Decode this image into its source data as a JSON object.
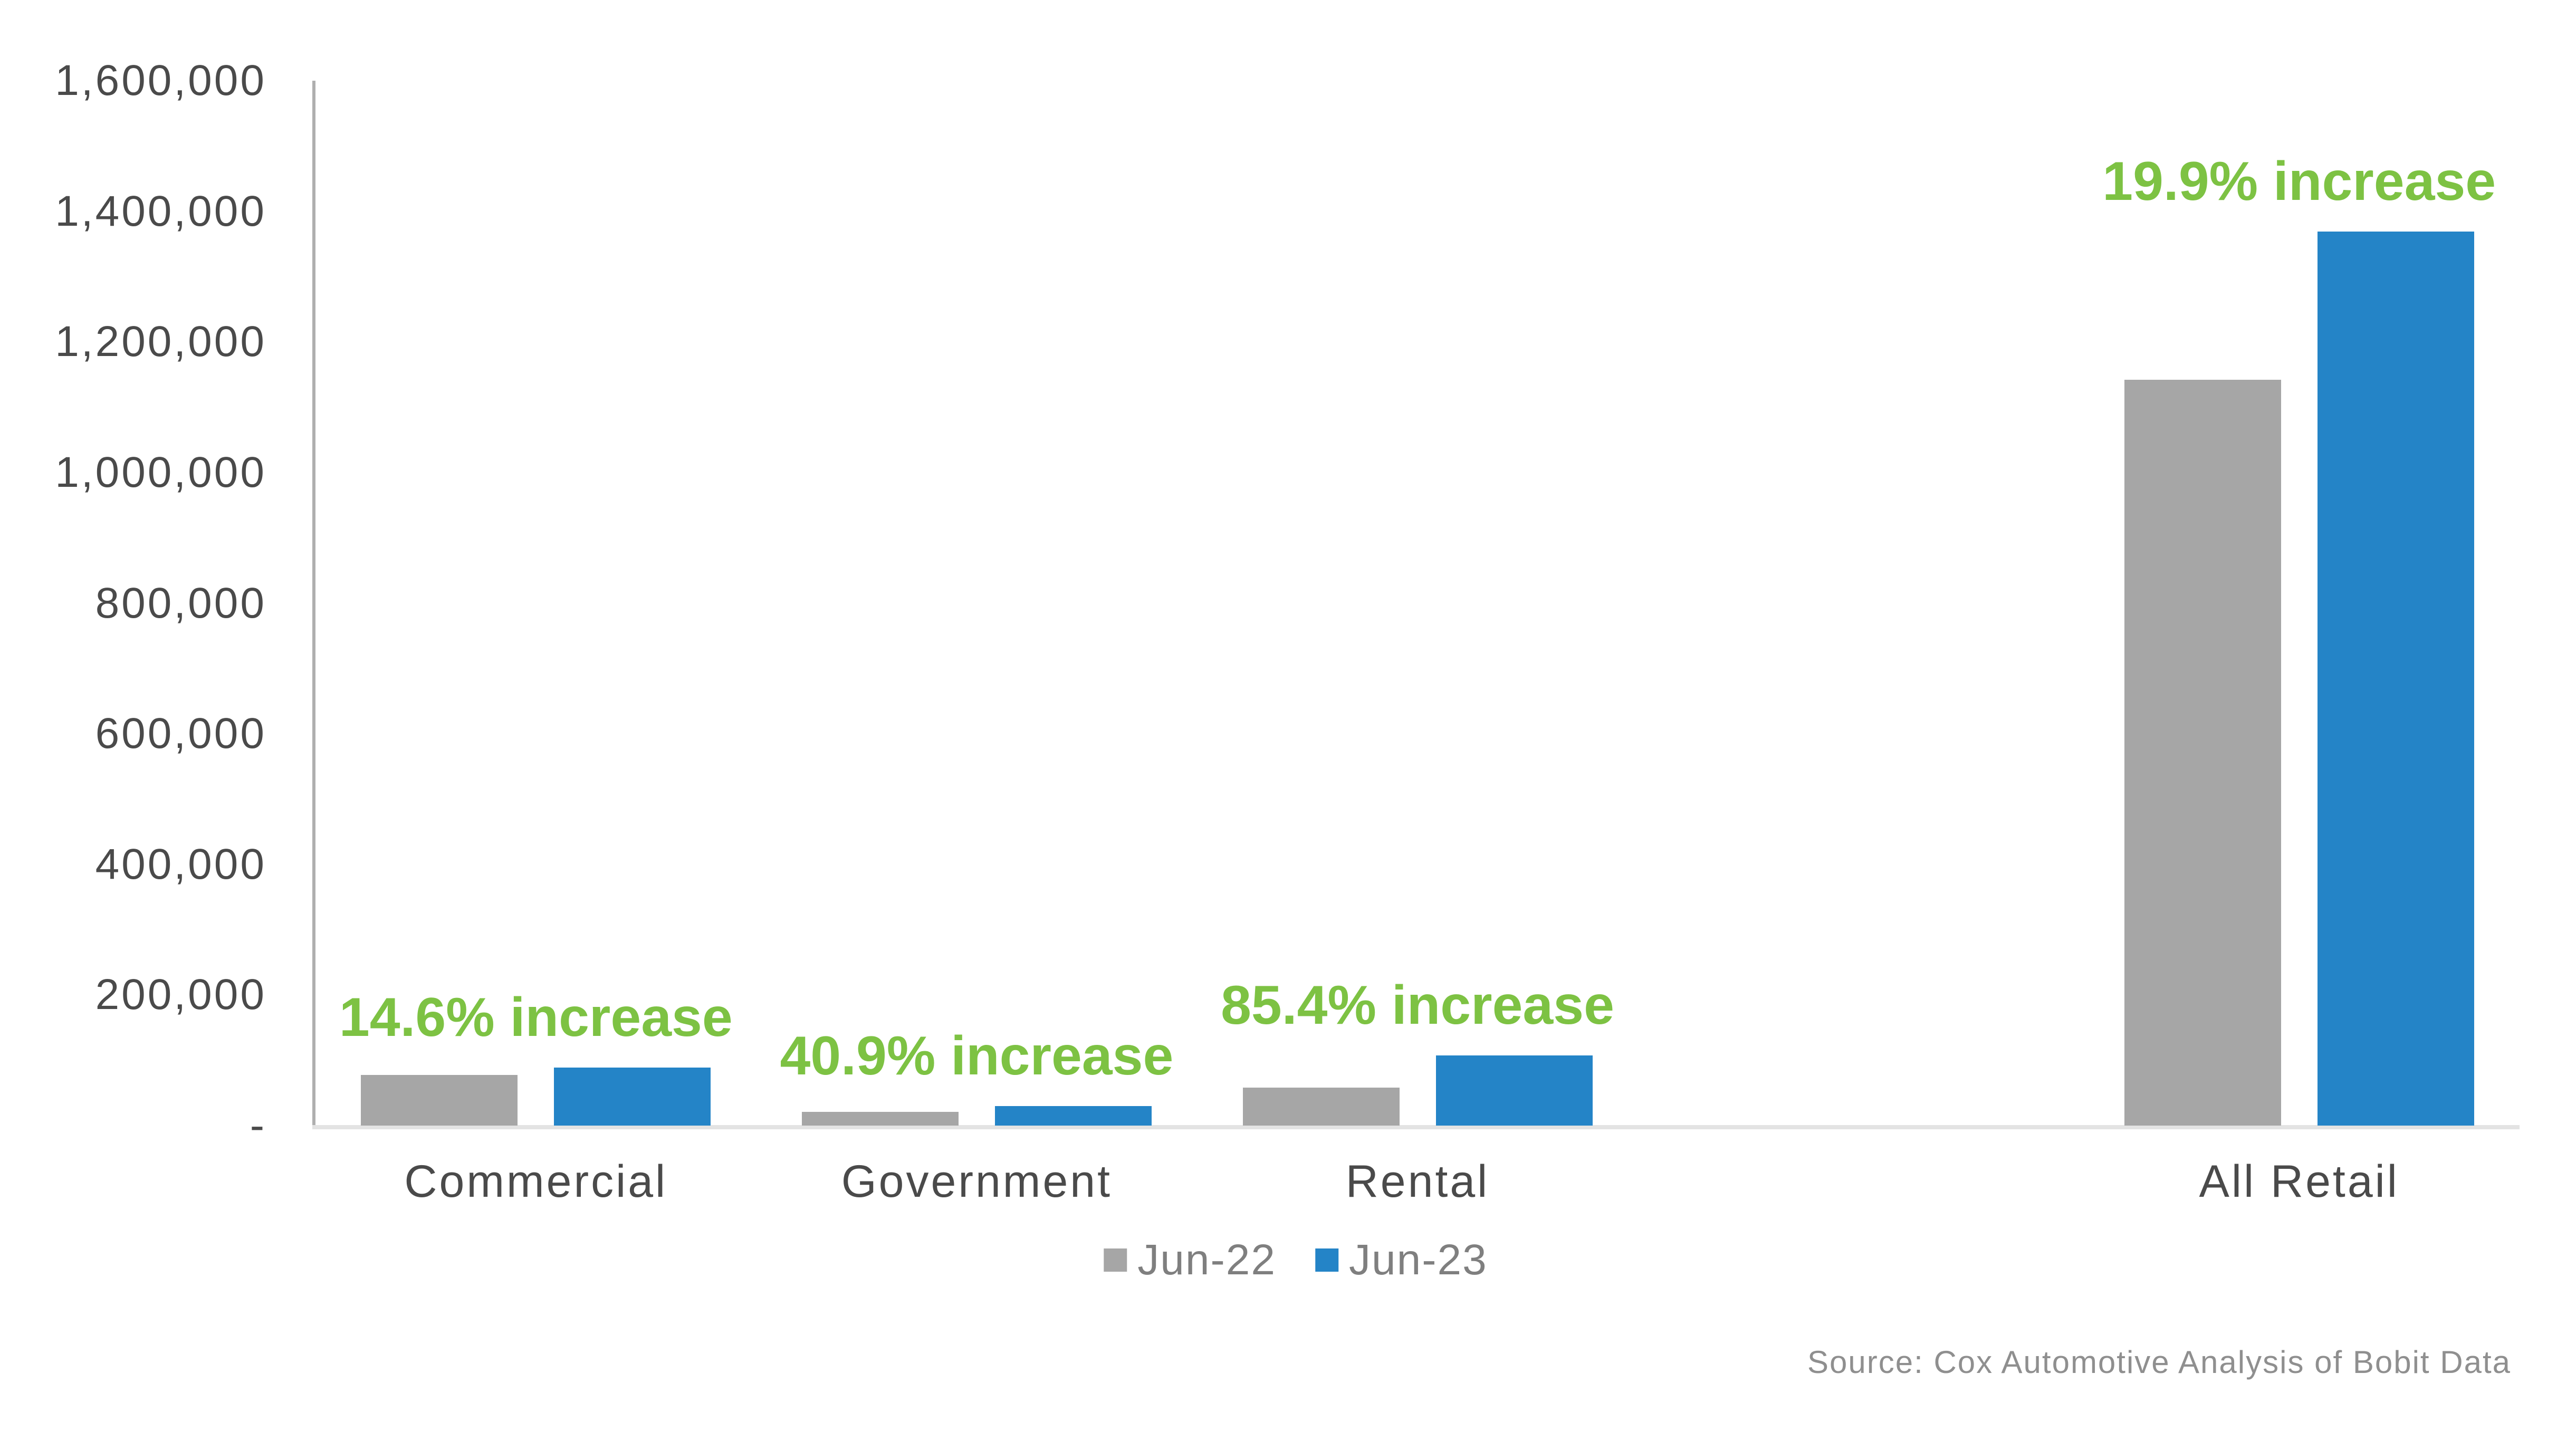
{
  "chart_data": {
    "type": "bar",
    "title": "",
    "categories": [
      "Commercial",
      "Government",
      "Rental",
      "All Retail"
    ],
    "series": [
      {
        "name": "Jun-22",
        "color": "#A6A6A6",
        "values": [
          77500,
          21000,
          58000,
          1142000
        ]
      },
      {
        "name": "Jun-23",
        "color": "#2484C7",
        "values": [
          88800,
          29600,
          107500,
          1369000
        ]
      }
    ],
    "annotations": [
      {
        "category": "Commercial",
        "text": "14.6% increase"
      },
      {
        "category": "Government",
        "text": "40.9% increase"
      },
      {
        "category": "Rental",
        "text": "85.4% increase"
      },
      {
        "category": "All Retail",
        "text": "19.9% increase"
      }
    ],
    "annotation_color": "#7DC243",
    "ylim": [
      0,
      1600000
    ],
    "ytick_interval": 200000,
    "ytick_labels": [
      "-",
      "200,000",
      "400,000",
      "600,000",
      "800,000",
      "1,000,000",
      "1,200,000",
      "1,400,000",
      "1,600,000"
    ],
    "grid": false,
    "legend_position": "bottom-center",
    "layout": {
      "slot_count": 5,
      "category_slots": [
        0,
        1,
        2,
        4
      ]
    }
  },
  "footer": {
    "source": "Source: Cox Automotive Analysis of Bobit Data"
  }
}
